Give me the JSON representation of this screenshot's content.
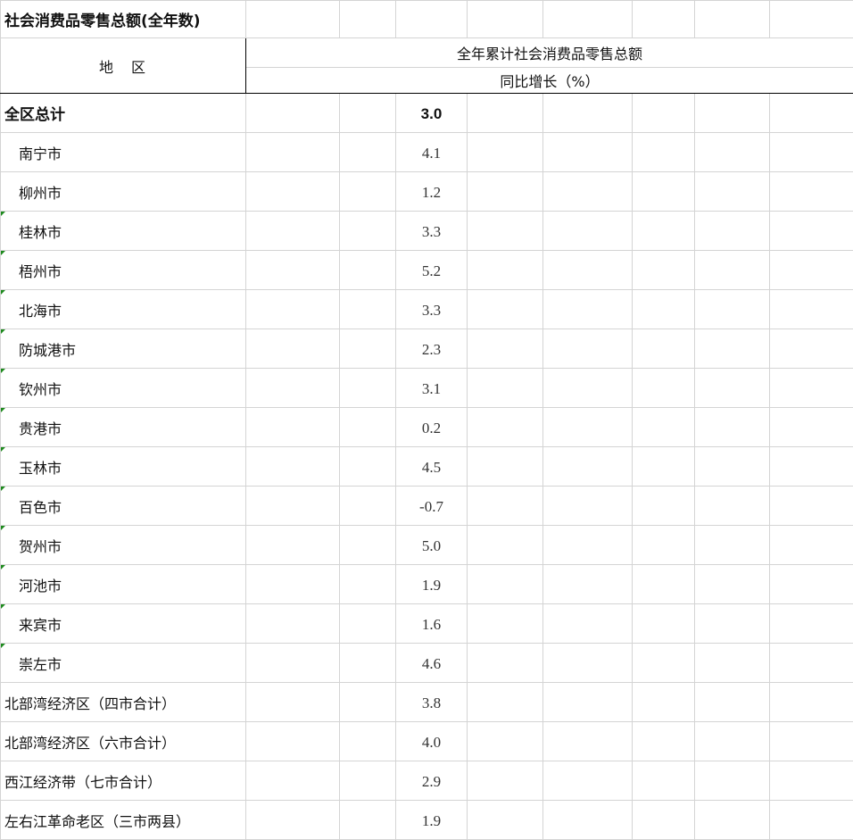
{
  "title": "社会消费品零售总额(全年数)",
  "header": {
    "region": "地　区",
    "metric": "全年累计社会消费品零售总额",
    "unit": "同比增长（%）"
  },
  "rows": [
    {
      "region": "全区总计",
      "value": "3.0",
      "bold": true,
      "indent": false,
      "marker": false
    },
    {
      "region": "南宁市",
      "value": "4.1",
      "bold": false,
      "indent": true,
      "marker": false
    },
    {
      "region": "柳州市",
      "value": "1.2",
      "bold": false,
      "indent": true,
      "marker": false
    },
    {
      "region": "桂林市",
      "value": "3.3",
      "bold": false,
      "indent": true,
      "marker": true
    },
    {
      "region": "梧州市",
      "value": "5.2",
      "bold": false,
      "indent": true,
      "marker": true
    },
    {
      "region": "北海市",
      "value": "3.3",
      "bold": false,
      "indent": true,
      "marker": true
    },
    {
      "region": "防城港市",
      "value": "2.3",
      "bold": false,
      "indent": true,
      "marker": true
    },
    {
      "region": "钦州市",
      "value": "3.1",
      "bold": false,
      "indent": true,
      "marker": true
    },
    {
      "region": "贵港市",
      "value": "0.2",
      "bold": false,
      "indent": true,
      "marker": true
    },
    {
      "region": "玉林市",
      "value": "4.5",
      "bold": false,
      "indent": true,
      "marker": true
    },
    {
      "region": "百色市",
      "value": "-0.7",
      "bold": false,
      "indent": true,
      "marker": true
    },
    {
      "region": "贺州市",
      "value": "5.0",
      "bold": false,
      "indent": true,
      "marker": true
    },
    {
      "region": "河池市",
      "value": "1.9",
      "bold": false,
      "indent": true,
      "marker": true
    },
    {
      "region": "来宾市",
      "value": "1.6",
      "bold": false,
      "indent": true,
      "marker": true
    },
    {
      "region": "崇左市",
      "value": "4.6",
      "bold": false,
      "indent": true,
      "marker": true
    },
    {
      "region": "北部湾经济区（四市合计）",
      "value": "3.8",
      "bold": false,
      "indent": false,
      "marker": false
    },
    {
      "region": "北部湾经济区（六市合计）",
      "value": "4.0",
      "bold": false,
      "indent": false,
      "marker": false
    },
    {
      "region": "西江经济带（七市合计）",
      "value": "2.9",
      "bold": false,
      "indent": false,
      "marker": false
    },
    {
      "region": "左右江革命老区（三市两县）",
      "value": "1.9",
      "bold": false,
      "indent": false,
      "marker": false
    }
  ],
  "colors": {
    "grid": "#d4d4d4",
    "header_border": "#000000",
    "marker": "#1e8a1e"
  }
}
